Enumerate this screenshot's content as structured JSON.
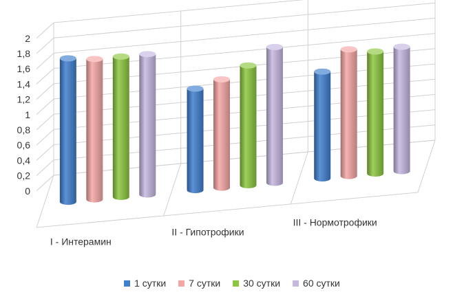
{
  "chart_data": {
    "type": "bar",
    "subtype": "3d-cylinder",
    "categories": [
      "I - Интерамин",
      "II - Гипотрофики",
      "III - Нормотрофики"
    ],
    "series": [
      {
        "name": "1 сутки",
        "color": "#3f7fcf",
        "values": [
          1.88,
          1.33,
          1.4
        ]
      },
      {
        "name": "7 сутки",
        "color": "#f4a6a4",
        "values": [
          1.84,
          1.42,
          1.66
        ]
      },
      {
        "name": "30 сутки",
        "color": "#8cc63f",
        "values": [
          1.84,
          1.57,
          1.6
        ]
      },
      {
        "name": "60 сутки",
        "color": "#c5b7e0",
        "values": [
          1.84,
          1.78,
          1.63
        ]
      }
    ],
    "y_ticks": [
      "0",
      "0,2",
      "0,4",
      "0,6",
      "0,8",
      "1",
      "1,2",
      "1,4",
      "1,6",
      "1,8",
      "2"
    ],
    "ylim": [
      0,
      2
    ],
    "grid": true,
    "legend_position": "bottom"
  }
}
